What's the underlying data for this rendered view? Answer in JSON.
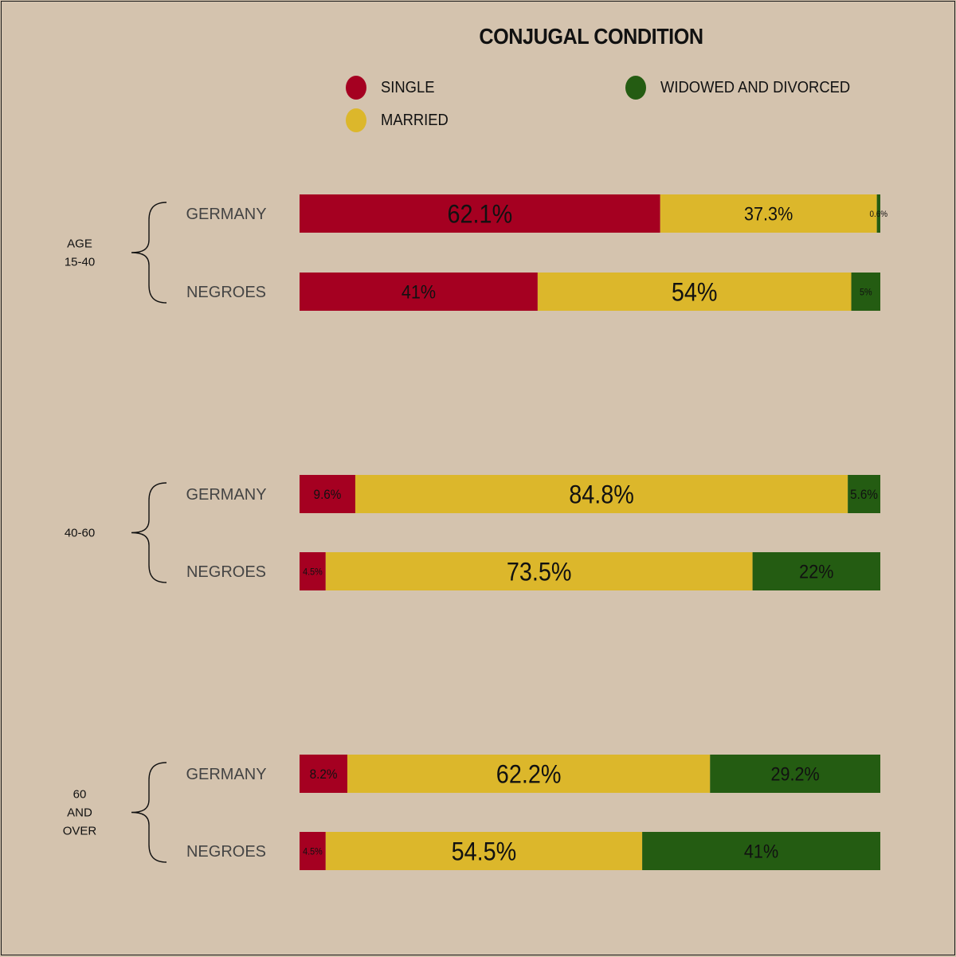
{
  "title": "CONJUGAL CONDITION",
  "legend": [
    {
      "label": "SINGLE",
      "color": "#a50021"
    },
    {
      "label": "MARRIED",
      "color": "#dcb72b"
    },
    {
      "label": "WIDOWED AND DIVORCED",
      "color": "#245c12"
    }
  ],
  "chart_data": {
    "type": "bar",
    "orientation": "horizontal",
    "stacked": true,
    "unit": "%",
    "title": "CONJUGAL CONDITION",
    "series_names": [
      "SINGLE",
      "MARRIED",
      "WIDOWED AND DIVORCED"
    ],
    "groups": [
      {
        "label": [
          "AGE",
          "15-40"
        ],
        "rows": [
          {
            "category": "GERMANY",
            "values": [
              62.1,
              37.3,
              0.6
            ],
            "labels": [
              "62.1%",
              "37.3%",
              "0.6%"
            ]
          },
          {
            "category": "NEGROES",
            "values": [
              41,
              54,
              5
            ],
            "labels": [
              "41%",
              "54%",
              "5%"
            ]
          }
        ]
      },
      {
        "label": [
          "40-60"
        ],
        "rows": [
          {
            "category": "GERMANY",
            "values": [
              9.6,
              84.8,
              5.6
            ],
            "labels": [
              "9.6%",
              "84.8%",
              "5.6%"
            ]
          },
          {
            "category": "NEGROES",
            "values": [
              4.5,
              73.5,
              22
            ],
            "labels": [
              "4.5%",
              "73.5%",
              "22%"
            ]
          }
        ]
      },
      {
        "label": [
          "60",
          "AND",
          "OVER"
        ],
        "rows": [
          {
            "category": "GERMANY",
            "values": [
              8.2,
              62.2,
              29.2
            ],
            "labels": [
              "8.2%",
              "62.2%",
              "29.2%"
            ]
          },
          {
            "category": "NEGROES",
            "values": [
              4.5,
              54.5,
              41
            ],
            "labels": [
              "4.5%",
              "54.5%",
              "41%"
            ]
          }
        ]
      }
    ]
  }
}
